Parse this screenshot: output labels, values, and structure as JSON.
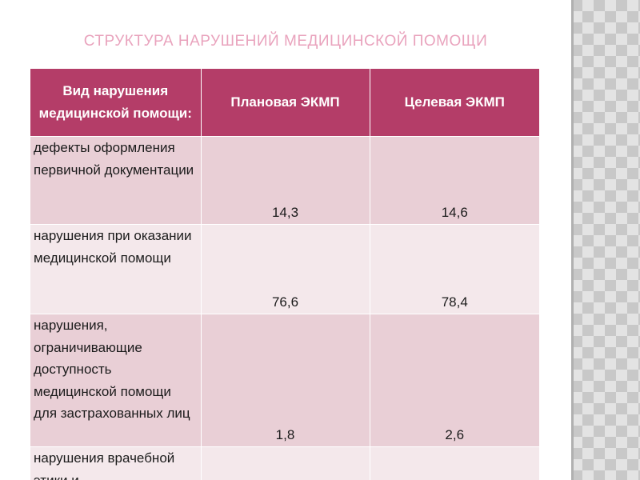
{
  "slide": {
    "title": "СТРУКТУРА НАРУШЕНИЙ МЕДИЦИНСКОЙ ПОМОЩИ"
  },
  "table": {
    "headers": [
      "Вид нарушения медицинской помощи:",
      "Плановая ЭКМП",
      "Целевая ЭКМП"
    ],
    "rows": [
      {
        "label": "дефекты оформления первичной документации",
        "planned": "14,3",
        "targeted": "14,6"
      },
      {
        "label": "нарушения при оказании медицинской помощи",
        "planned": "76,6",
        "targeted": "78,4"
      },
      {
        "label": "нарушения, ограничивающие доступность медицинской помощи для застрахованных лиц",
        "planned": "1,8",
        "targeted": "2,6"
      },
      {
        "label": "нарушения врачебной этики и",
        "planned": "",
        "targeted": ""
      }
    ]
  },
  "colors": {
    "header_bg": "#b43d68",
    "row_odd_bg": "#e9cfd6",
    "row_even_bg": "#f4e8eb",
    "title_color": "#e9a3bd"
  }
}
